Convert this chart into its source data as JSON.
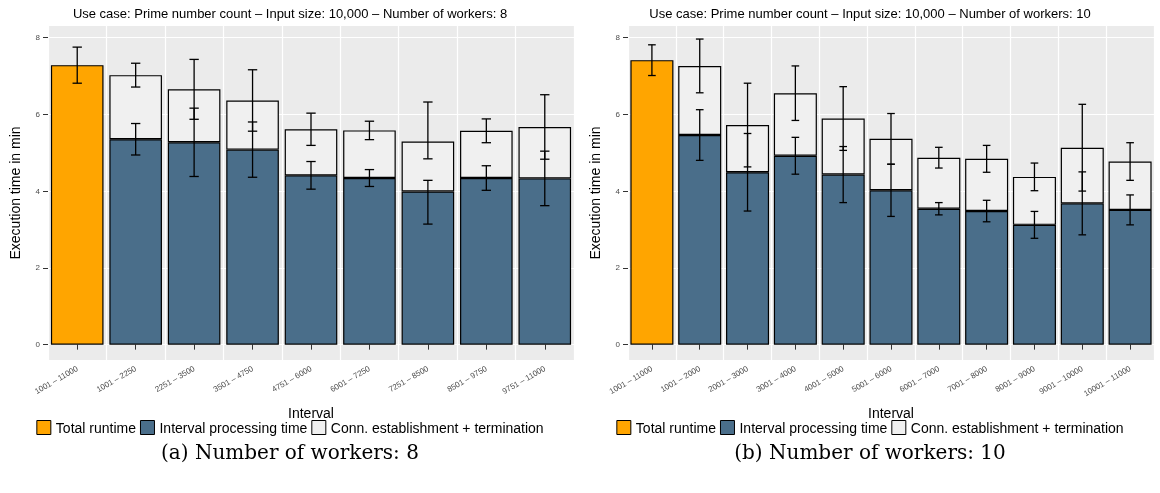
{
  "chart_data": [
    {
      "type": "bar",
      "title": "Use case: Prime number count – Input size: 10,000 – Number of workers: 8",
      "xlabel": "Interval",
      "ylabel": "Execution time in min",
      "categories": [
        "1001 – 11000",
        "1001 – 2250",
        "2251 – 3500",
        "3501 – 4750",
        "4751 – 6000",
        "6001 – 7250",
        "7251 – 8500",
        "8501 – 9750",
        "9751 – 11000"
      ],
      "stacked": true,
      "ylim": [
        -0.4,
        8.3
      ],
      "yticks": [
        0,
        2,
        4,
        6,
        8
      ],
      "grid": true,
      "legend": "bottom",
      "annotations": [
        "(a) Number of workers: 8"
      ],
      "series": [
        {
          "name": "Total runtime",
          "color": "#ffa500",
          "values": [
            7.28,
            null,
            null,
            null,
            null,
            null,
            null,
            null,
            null
          ],
          "errors": [
            0.47,
            null,
            null,
            null,
            null,
            null,
            null,
            null,
            null
          ]
        },
        {
          "name": "Interval processing time",
          "color": "#4a6e8a",
          "values": [
            null,
            5.35,
            5.27,
            5.08,
            4.41,
            4.34,
            3.99,
            4.34,
            4.33
          ],
          "errors": [
            null,
            0.41,
            0.89,
            0.72,
            0.36,
            0.22,
            [
              3.14,
              4.28
            ],
            0.32,
            0.71
          ]
        },
        {
          "name": "Conn. establishment + termination",
          "color": "#f0f0f0",
          "values": [
            null,
            1.67,
            1.38,
            1.28,
            1.2,
            1.24,
            1.3,
            1.23,
            1.34
          ],
          "errors": [
            null,
            0.31,
            0.78,
            0.8,
            0.42,
            0.24,
            [
              4.84,
              6.32
            ],
            0.31,
            0.84
          ]
        }
      ]
    },
    {
      "type": "bar",
      "title": "Use case: Prime number count – Input size: 10,000 – Number of workers: 10",
      "xlabel": "Interval",
      "ylabel": "Execution time in min",
      "categories": [
        "1001 – 11000",
        "1001 – 2000",
        "2001 – 3000",
        "3001 – 4000",
        "4001 – 5000",
        "5001 – 6000",
        "6001 – 7000",
        "7001 – 8000",
        "8001 – 9000",
        "9001 – 10000",
        "10001 – 11000"
      ],
      "stacked": true,
      "ylim": [
        -0.4,
        8.3
      ],
      "yticks": [
        0,
        2,
        4,
        6,
        8
      ],
      "grid": true,
      "legend": "bottom",
      "annotations": [
        "(b) Number of workers: 10"
      ],
      "series": [
        {
          "name": "Total runtime",
          "color": "#ffa500",
          "values": [
            7.41,
            null,
            null,
            null,
            null,
            null,
            null,
            null,
            null,
            null,
            null
          ],
          "errors": [
            0.4,
            null,
            null,
            null,
            null,
            null,
            null,
            null,
            null,
            null,
            null
          ]
        },
        {
          "name": "Interval processing time",
          "color": "#4a6e8a",
          "values": [
            null,
            5.46,
            4.49,
            4.92,
            4.43,
            4.02,
            3.54,
            3.48,
            3.12,
            3.68,
            3.51
          ],
          "errors": [
            null,
            0.66,
            1.01,
            0.48,
            0.73,
            0.68,
            0.16,
            0.28,
            0.35,
            0.82,
            0.39
          ]
        },
        {
          "name": "Conn. establishment + termination",
          "color": "#f0f0f0",
          "values": [
            null,
            1.8,
            1.23,
            1.63,
            1.46,
            1.34,
            1.33,
            1.36,
            1.25,
            1.45,
            1.26
          ],
          "errors": [
            null,
            0.7,
            1.09,
            0.71,
            0.83,
            0.66,
            0.27,
            0.35,
            0.36,
            1.13,
            0.49
          ]
        }
      ]
    }
  ]
}
